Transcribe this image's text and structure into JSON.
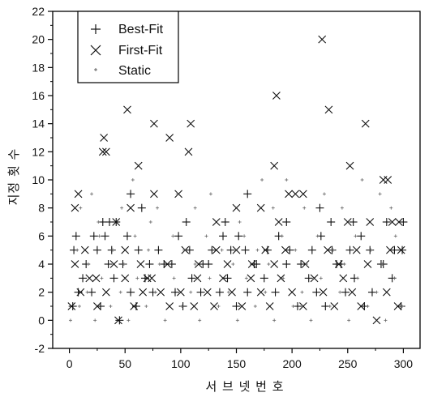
{
  "chart_data": {
    "type": "scatter",
    "title": "",
    "xlabel": "서 브 넷 번 호",
    "ylabel": "지정 횟 수",
    "xlim": [
      -15,
      315
    ],
    "ylim": [
      -2,
      22
    ],
    "x_ticks": [
      0,
      50,
      100,
      150,
      200,
      250,
      300
    ],
    "y_ticks": [
      -2,
      0,
      2,
      4,
      6,
      8,
      10,
      12,
      14,
      16,
      18,
      20,
      22
    ],
    "grid": false,
    "legend_position": "top-left",
    "series": [
      {
        "name": "Best-Fit",
        "marker": "plus",
        "points": [
          [
            3,
            1
          ],
          [
            8,
            2
          ],
          [
            12,
            3
          ],
          [
            20,
            2
          ],
          [
            28,
            1
          ],
          [
            35,
            4
          ],
          [
            40,
            3
          ],
          [
            45,
            0
          ],
          [
            55,
            2
          ],
          [
            60,
            1
          ],
          [
            68,
            3
          ],
          [
            75,
            2
          ],
          [
            85,
            4
          ],
          [
            95,
            2
          ],
          [
            102,
            1
          ],
          [
            110,
            3
          ],
          [
            118,
            2
          ],
          [
            125,
            4
          ],
          [
            135,
            2
          ],
          [
            142,
            3
          ],
          [
            150,
            1
          ],
          [
            160,
            2
          ],
          [
            168,
            4
          ],
          [
            175,
            3
          ],
          [
            185,
            2
          ],
          [
            195,
            4
          ],
          [
            205,
            1
          ],
          [
            215,
            3
          ],
          [
            222,
            2
          ],
          [
            230,
            1
          ],
          [
            240,
            4
          ],
          [
            248,
            2
          ],
          [
            256,
            3
          ],
          [
            265,
            1
          ],
          [
            272,
            2
          ],
          [
            280,
            4
          ],
          [
            290,
            3
          ],
          [
            298,
            1
          ],
          [
            4,
            5
          ],
          [
            15,
            4
          ],
          [
            25,
            5
          ],
          [
            32,
            6
          ],
          [
            38,
            5
          ],
          [
            48,
            4
          ],
          [
            52,
            6
          ],
          [
            62,
            5
          ],
          [
            72,
            4
          ],
          [
            80,
            5
          ],
          [
            92,
            4
          ],
          [
            98,
            6
          ],
          [
            108,
            5
          ],
          [
            120,
            4
          ],
          [
            128,
            5
          ],
          [
            138,
            6
          ],
          [
            145,
            5
          ],
          [
            152,
            6
          ],
          [
            158,
            5
          ],
          [
            166,
            4
          ],
          [
            178,
            5
          ],
          [
            188,
            6
          ],
          [
            198,
            5
          ],
          [
            208,
            4
          ],
          [
            218,
            5
          ],
          [
            226,
            6
          ],
          [
            236,
            5
          ],
          [
            244,
            4
          ],
          [
            252,
            5
          ],
          [
            262,
            6
          ],
          [
            270,
            5
          ],
          [
            282,
            4
          ],
          [
            292,
            5
          ],
          [
            299,
            5
          ],
          [
            6,
            6
          ],
          [
            22,
            6
          ],
          [
            30,
            7
          ],
          [
            36,
            7
          ],
          [
            42,
            7
          ],
          [
            55,
            9
          ],
          [
            65,
            8
          ],
          [
            105,
            7
          ],
          [
            140,
            7
          ],
          [
            160,
            9
          ],
          [
            195,
            7
          ],
          [
            225,
            8
          ],
          [
            235,
            7
          ],
          [
            255,
            7
          ],
          [
            285,
            7
          ],
          [
            300,
            7
          ]
        ]
      },
      {
        "name": "First-Fit",
        "marker": "x",
        "points": [
          [
            2,
            1
          ],
          [
            10,
            2
          ],
          [
            18,
            3
          ],
          [
            25,
            1
          ],
          [
            33,
            2
          ],
          [
            44,
            0
          ],
          [
            50,
            3
          ],
          [
            58,
            1
          ],
          [
            66,
            2
          ],
          [
            74,
            3
          ],
          [
            82,
            2
          ],
          [
            90,
            1
          ],
          [
            100,
            2
          ],
          [
            112,
            1
          ],
          [
            115,
            3
          ],
          [
            124,
            2
          ],
          [
            130,
            1
          ],
          [
            138,
            3
          ],
          [
            146,
            2
          ],
          [
            155,
            1
          ],
          [
            163,
            3
          ],
          [
            172,
            2
          ],
          [
            180,
            1
          ],
          [
            190,
            3
          ],
          [
            200,
            2
          ],
          [
            210,
            1
          ],
          [
            220,
            3
          ],
          [
            228,
            2
          ],
          [
            238,
            1
          ],
          [
            246,
            3
          ],
          [
            254,
            2
          ],
          [
            262,
            1
          ],
          [
            276,
            0
          ],
          [
            285,
            2
          ],
          [
            295,
            1
          ],
          [
            5,
            4
          ],
          [
            14,
            5
          ],
          [
            24,
            3
          ],
          [
            40,
            4
          ],
          [
            50,
            5
          ],
          [
            64,
            4
          ],
          [
            70,
            3
          ],
          [
            88,
            4
          ],
          [
            104,
            5
          ],
          [
            116,
            4
          ],
          [
            132,
            5
          ],
          [
            142,
            4
          ],
          [
            150,
            5
          ],
          [
            164,
            4
          ],
          [
            176,
            5
          ],
          [
            184,
            4
          ],
          [
            194,
            5
          ],
          [
            212,
            4
          ],
          [
            232,
            5
          ],
          [
            242,
            4
          ],
          [
            258,
            5
          ],
          [
            268,
            4
          ],
          [
            288,
            5
          ],
          [
            298,
            5
          ],
          [
            5,
            8
          ],
          [
            8,
            9
          ],
          [
            42,
            7
          ],
          [
            55,
            8
          ],
          [
            76,
            9
          ],
          [
            98,
            9
          ],
          [
            132,
            7
          ],
          [
            150,
            8
          ],
          [
            172,
            8
          ],
          [
            188,
            7
          ],
          [
            197,
            9
          ],
          [
            203,
            9
          ],
          [
            210,
            9
          ],
          [
            250,
            7
          ],
          [
            270,
            7
          ],
          [
            282,
            10
          ],
          [
            286,
            10
          ],
          [
            290,
            7
          ],
          [
            296,
            7
          ],
          [
            30,
            12
          ],
          [
            31,
            13
          ],
          [
            33,
            12
          ],
          [
            52,
            15
          ],
          [
            62,
            11
          ],
          [
            76,
            14
          ],
          [
            90,
            13
          ],
          [
            107,
            12
          ],
          [
            109,
            14
          ],
          [
            184,
            11
          ],
          [
            186,
            16
          ],
          [
            227,
            20
          ],
          [
            233,
            15
          ],
          [
            252,
            11
          ],
          [
            266,
            14
          ]
        ]
      },
      {
        "name": "Static",
        "marker": "dot",
        "points": [
          [
            1,
            0
          ],
          [
            9,
            1
          ],
          [
            16,
            2
          ],
          [
            23,
            0
          ],
          [
            29,
            3
          ],
          [
            37,
            1
          ],
          [
            46,
            2
          ],
          [
            53,
            0
          ],
          [
            61,
            3
          ],
          [
            69,
            1
          ],
          [
            77,
            2
          ],
          [
            86,
            0
          ],
          [
            94,
            3
          ],
          [
            101,
            1
          ],
          [
            109,
            2
          ],
          [
            117,
            0
          ],
          [
            126,
            3
          ],
          [
            134,
            1
          ],
          [
            143,
            2
          ],
          [
            151,
            0
          ],
          [
            159,
            3
          ],
          [
            167,
            1
          ],
          [
            176,
            2
          ],
          [
            184,
            0
          ],
          [
            192,
            3
          ],
          [
            201,
            1
          ],
          [
            209,
            2
          ],
          [
            217,
            0
          ],
          [
            226,
            3
          ],
          [
            234,
            1
          ],
          [
            243,
            2
          ],
          [
            251,
            0
          ],
          [
            259,
            3
          ],
          [
            268,
            1
          ],
          [
            276,
            2
          ],
          [
            284,
            0
          ],
          [
            292,
            3
          ],
          [
            299,
            1
          ],
          [
            7,
            5
          ],
          [
            17,
            4
          ],
          [
            27,
            6
          ],
          [
            39,
            5
          ],
          [
            49,
            4
          ],
          [
            59,
            6
          ],
          [
            71,
            5
          ],
          [
            81,
            4
          ],
          [
            93,
            6
          ],
          [
            103,
            5
          ],
          [
            113,
            4
          ],
          [
            123,
            6
          ],
          [
            137,
            5
          ],
          [
            147,
            4
          ],
          [
            157,
            6
          ],
          [
            169,
            5
          ],
          [
            179,
            4
          ],
          [
            191,
            6
          ],
          [
            203,
            5
          ],
          [
            213,
            4
          ],
          [
            223,
            6
          ],
          [
            237,
            5
          ],
          [
            247,
            4
          ],
          [
            257,
            6
          ],
          [
            271,
            5
          ],
          [
            281,
            4
          ],
          [
            293,
            6
          ],
          [
            10,
            8
          ],
          [
            20,
            9
          ],
          [
            26,
            7
          ],
          [
            47,
            8
          ],
          [
            57,
            10
          ],
          [
            73,
            7
          ],
          [
            79,
            8
          ],
          [
            97,
            9
          ],
          [
            113,
            8
          ],
          [
            127,
            9
          ],
          [
            153,
            7
          ],
          [
            173,
            10
          ],
          [
            183,
            8
          ],
          [
            195,
            10
          ],
          [
            211,
            8
          ],
          [
            229,
            9
          ],
          [
            245,
            8
          ],
          [
            263,
            10
          ],
          [
            279,
            9
          ],
          [
            289,
            8
          ]
        ]
      }
    ]
  }
}
